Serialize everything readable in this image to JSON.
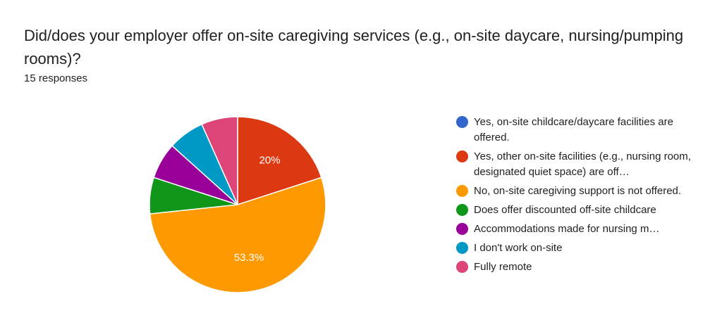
{
  "question": {
    "title": "Did/does your employer offer on-site caregiving services (e.g., on-site daycare, nursing/pumping rooms)?",
    "responses": "15 responses"
  },
  "chart_data": {
    "type": "pie",
    "total_responses": 15,
    "start_angle_deg": 90,
    "direction": "clockwise",
    "slices": [
      {
        "label": "Yes, on-site childcare/daycare facilities are offered.",
        "count": 0,
        "percent": 0,
        "color": "#3366cc",
        "value_label": ""
      },
      {
        "label": "Yes, other on-site facilities (e.g., nursing room, designated quiet space) are off…",
        "count": 3,
        "percent": 20,
        "color": "#dc3912",
        "value_label": "20%"
      },
      {
        "label": "No, on-site caregiving support is not offered.",
        "count": 8,
        "percent": 53.3,
        "color": "#ff9900",
        "value_label": "53.3%"
      },
      {
        "label": "Does offer discounted off-site childcare",
        "count": 1,
        "percent": 6.7,
        "color": "#109618",
        "value_label": ""
      },
      {
        "label": "Accommodations made for nursing m…",
        "count": 1,
        "percent": 6.7,
        "color": "#990099",
        "value_label": ""
      },
      {
        "label": "I don't work on-site",
        "count": 1,
        "percent": 6.7,
        "color": "#0099c6",
        "value_label": ""
      },
      {
        "label": "Fully remote",
        "count": 1,
        "percent": 6.7,
        "color": "#dd4477",
        "value_label": ""
      }
    ],
    "legend_position": "right"
  }
}
